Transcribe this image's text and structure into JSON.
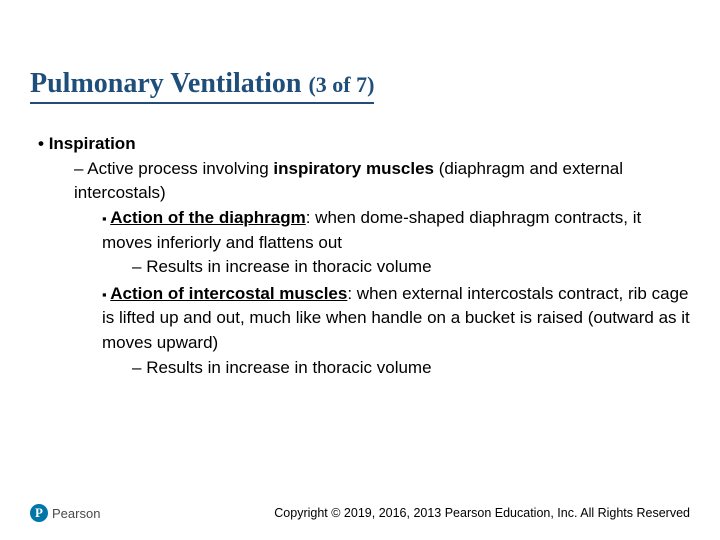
{
  "colors": {
    "title": "#1e4e79",
    "text": "#000000",
    "logo_bg": "#0076a8",
    "logo_fg": "#ffffff",
    "background": "#ffffff"
  },
  "typography": {
    "title_family": "Times New Roman",
    "title_size_pt": 28,
    "title_sub_size_pt": 22,
    "body_family": "Arial",
    "body_size_pt": 17,
    "footer_size_pt": 12.5
  },
  "title": {
    "main": "Pulmonary Ventilation ",
    "sub": "(3 of 7)"
  },
  "bullets": {
    "lvl1": "Inspiration",
    "lvl2_pre": "Active process involving ",
    "lvl2_bold": "inspiratory muscles",
    "lvl2_post": " (diaphragm and external intercostals)",
    "lvl3a_label": "Action of the diaphragm",
    "lvl3a_rest": ": when dome-shaped diaphragm contracts, it moves inferiorly and flattens out",
    "lvl4a": "Results in increase in thoracic volume",
    "lvl3b_label": "Action of intercostal muscles",
    "lvl3b_rest": ": when external intercostals contract, rib cage is lifted up and out, much like when handle on a bucket is raised (outward as it moves upward)",
    "lvl4b": "Results in increase in thoracic volume"
  },
  "footer": {
    "logo_letter": "P",
    "logo_text": "Pearson",
    "copyright": "Copyright © 2019, 2016, 2013 Pearson Education, Inc. All Rights Reserved"
  }
}
